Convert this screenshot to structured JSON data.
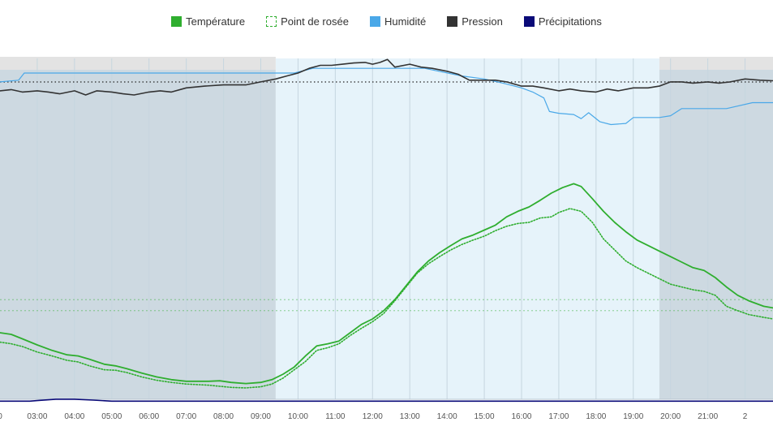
{
  "legend": [
    {
      "label": "Température",
      "color": "#2fae2f",
      "style": "solid"
    },
    {
      "label": "Point de rosée",
      "color": "#2fae2f",
      "style": "dotted"
    },
    {
      "label": "Humidité",
      "color": "#4aa8e8",
      "style": "solid"
    },
    {
      "label": "Pression",
      "color": "#333333",
      "style": "solid"
    },
    {
      "label": "Précipitations",
      "color": "#0a0a78",
      "style": "solid"
    }
  ],
  "colors": {
    "temperature": "#2fae2f",
    "dewpoint": "#2fae2f",
    "humidity": "#4aa8e8",
    "pressure": "#333333",
    "precip": "#0a0a78",
    "night": "#cdd9e1",
    "day": "#e6f3fa",
    "night_shade_top": "#e3e3e3"
  },
  "chart_data": {
    "type": "line",
    "x_unit": "hour",
    "xlim": [
      2.0,
      22.75
    ],
    "x_ticks": [
      {
        "x": 2,
        "label": "0"
      },
      {
        "x": 3,
        "label": "03:00"
      },
      {
        "x": 4,
        "label": "04:00"
      },
      {
        "x": 5,
        "label": "05:00"
      },
      {
        "x": 6,
        "label": "06:00"
      },
      {
        "x": 7,
        "label": "07:00"
      },
      {
        "x": 8,
        "label": "08:00"
      },
      {
        "x": 9,
        "label": "09:00"
      },
      {
        "x": 10,
        "label": "10:00"
      },
      {
        "x": 11,
        "label": "11:00"
      },
      {
        "x": 12,
        "label": "12:00"
      },
      {
        "x": 13,
        "label": "13:00"
      },
      {
        "x": 14,
        "label": "14:00"
      },
      {
        "x": 15,
        "label": "15:00"
      },
      {
        "x": 16,
        "label": "16:00"
      },
      {
        "x": 17,
        "label": "17:00"
      },
      {
        "x": 18,
        "label": "18:00"
      },
      {
        "x": 19,
        "label": "19:00"
      },
      {
        "x": 20,
        "label": "20:00"
      },
      {
        "x": 21,
        "label": "21:00"
      },
      {
        "x": 22,
        "label": "2"
      }
    ],
    "night_bands": [
      [
        2.0,
        9.4
      ],
      [
        19.7,
        22.75
      ]
    ],
    "day_band": [
      9.4,
      19.7
    ],
    "gridlines_hours": [
      3,
      4,
      5,
      6,
      7,
      8,
      9,
      10,
      11,
      12,
      13,
      14,
      15,
      16,
      17,
      18,
      19,
      20,
      21,
      22
    ],
    "temp_scale": [
      0,
      100
    ],
    "pressure_scale": [
      0,
      100
    ],
    "series": [
      {
        "name": "Température",
        "key": "temperature",
        "axis": "temp",
        "points": [
          [
            2.0,
            25.0
          ],
          [
            2.3,
            24.4
          ],
          [
            2.6,
            22.8
          ],
          [
            3.0,
            20.6
          ],
          [
            3.4,
            18.6
          ],
          [
            3.8,
            17.0
          ],
          [
            4.1,
            16.6
          ],
          [
            4.4,
            15.4
          ],
          [
            4.8,
            13.6
          ],
          [
            5.1,
            13.0
          ],
          [
            5.4,
            12.0
          ],
          [
            5.8,
            10.4
          ],
          [
            6.2,
            9.0
          ],
          [
            6.6,
            8.0
          ],
          [
            7.0,
            7.4
          ],
          [
            7.6,
            7.4
          ],
          [
            7.9,
            7.6
          ],
          [
            8.2,
            7.0
          ],
          [
            8.6,
            6.6
          ],
          [
            9.0,
            7.0
          ],
          [
            9.3,
            8.0
          ],
          [
            9.6,
            10.0
          ],
          [
            9.9,
            12.6
          ],
          [
            10.2,
            16.6
          ],
          [
            10.5,
            20.2
          ],
          [
            10.8,
            21.0
          ],
          [
            11.1,
            22.0
          ],
          [
            11.4,
            25.0
          ],
          [
            11.7,
            28.0
          ],
          [
            12.0,
            30.0
          ],
          [
            12.3,
            33.0
          ],
          [
            12.6,
            37.0
          ],
          [
            12.9,
            42.0
          ],
          [
            13.2,
            47.0
          ],
          [
            13.5,
            51.0
          ],
          [
            13.8,
            54.0
          ],
          [
            14.1,
            56.6
          ],
          [
            14.4,
            59.0
          ],
          [
            14.7,
            60.4
          ],
          [
            15.0,
            62.2
          ],
          [
            15.3,
            64.0
          ],
          [
            15.6,
            67.0
          ],
          [
            15.9,
            69.0
          ],
          [
            16.2,
            70.6
          ],
          [
            16.5,
            73.0
          ],
          [
            16.8,
            75.6
          ],
          [
            17.1,
            77.6
          ],
          [
            17.4,
            79.0
          ],
          [
            17.6,
            78.0
          ],
          [
            17.9,
            73.6
          ],
          [
            18.2,
            69.0
          ],
          [
            18.5,
            65.0
          ],
          [
            18.8,
            61.6
          ],
          [
            19.1,
            58.6
          ],
          [
            19.4,
            56.6
          ],
          [
            19.7,
            54.6
          ],
          [
            20.0,
            52.6
          ],
          [
            20.3,
            50.6
          ],
          [
            20.6,
            48.6
          ],
          [
            20.9,
            47.6
          ],
          [
            21.2,
            45.0
          ],
          [
            21.5,
            41.6
          ],
          [
            21.8,
            38.6
          ],
          [
            22.1,
            36.6
          ],
          [
            22.5,
            34.6
          ],
          [
            22.75,
            34.0
          ]
        ]
      },
      {
        "name": "Point de rosée",
        "key": "dewpoint",
        "axis": "temp",
        "points": [
          [
            2.0,
            21.6
          ],
          [
            2.3,
            21.0
          ],
          [
            2.6,
            20.0
          ],
          [
            3.0,
            18.0
          ],
          [
            3.4,
            16.6
          ],
          [
            3.8,
            15.0
          ],
          [
            4.1,
            14.4
          ],
          [
            4.4,
            13.0
          ],
          [
            4.8,
            11.6
          ],
          [
            5.1,
            11.4
          ],
          [
            5.4,
            10.6
          ],
          [
            5.8,
            9.0
          ],
          [
            6.2,
            7.8
          ],
          [
            6.6,
            7.0
          ],
          [
            7.0,
            6.4
          ],
          [
            7.6,
            6.0
          ],
          [
            7.9,
            5.6
          ],
          [
            8.2,
            5.2
          ],
          [
            8.6,
            5.0
          ],
          [
            9.0,
            5.4
          ],
          [
            9.3,
            6.4
          ],
          [
            9.6,
            8.6
          ],
          [
            9.9,
            11.6
          ],
          [
            10.2,
            14.6
          ],
          [
            10.5,
            18.6
          ],
          [
            10.8,
            19.6
          ],
          [
            11.1,
            21.0
          ],
          [
            11.4,
            24.0
          ],
          [
            11.7,
            26.6
          ],
          [
            12.0,
            29.0
          ],
          [
            12.3,
            32.0
          ],
          [
            12.6,
            36.6
          ],
          [
            12.9,
            41.6
          ],
          [
            13.2,
            46.6
          ],
          [
            13.5,
            50.0
          ],
          [
            13.8,
            52.6
          ],
          [
            14.1,
            55.0
          ],
          [
            14.4,
            57.0
          ],
          [
            14.7,
            58.6
          ],
          [
            15.0,
            60.0
          ],
          [
            15.3,
            62.0
          ],
          [
            15.6,
            63.6
          ],
          [
            15.9,
            64.6
          ],
          [
            16.2,
            65.0
          ],
          [
            16.5,
            66.6
          ],
          [
            16.8,
            67.0
          ],
          [
            17.0,
            68.6
          ],
          [
            17.3,
            70.0
          ],
          [
            17.6,
            69.0
          ],
          [
            17.9,
            65.0
          ],
          [
            18.2,
            59.0
          ],
          [
            18.5,
            55.0
          ],
          [
            18.8,
            51.0
          ],
          [
            19.1,
            48.6
          ],
          [
            19.4,
            46.6
          ],
          [
            19.7,
            44.6
          ],
          [
            20.0,
            42.6
          ],
          [
            20.3,
            41.6
          ],
          [
            20.6,
            40.6
          ],
          [
            20.9,
            40.0
          ],
          [
            21.2,
            38.6
          ],
          [
            21.5,
            34.6
          ],
          [
            21.8,
            33.0
          ],
          [
            22.1,
            31.6
          ],
          [
            22.5,
            30.6
          ],
          [
            22.75,
            30.0
          ]
        ]
      },
      {
        "name": "Humidité",
        "key": "humidity",
        "axis": "pressure",
        "points": [
          [
            2.0,
            97.0
          ],
          [
            2.5,
            97.6
          ],
          [
            2.65,
            100.0
          ],
          [
            9.4,
            100.0
          ],
          [
            9.9,
            100.0
          ],
          [
            10.4,
            101.6
          ],
          [
            13.4,
            101.6
          ],
          [
            14.4,
            99.0
          ],
          [
            15.0,
            98.0
          ],
          [
            15.5,
            96.6
          ],
          [
            16.0,
            95.0
          ],
          [
            16.3,
            93.6
          ],
          [
            16.6,
            91.6
          ],
          [
            16.75,
            87.0
          ],
          [
            17.0,
            86.4
          ],
          [
            17.4,
            86.0
          ],
          [
            17.6,
            84.6
          ],
          [
            17.8,
            86.6
          ],
          [
            18.1,
            83.6
          ],
          [
            18.4,
            82.6
          ],
          [
            18.8,
            83.0
          ],
          [
            19.0,
            85.0
          ],
          [
            19.7,
            85.0
          ],
          [
            20.0,
            85.6
          ],
          [
            20.3,
            88.0
          ],
          [
            21.0,
            88.0
          ],
          [
            21.5,
            88.0
          ],
          [
            22.2,
            90.0
          ],
          [
            22.75,
            90.0
          ]
        ]
      },
      {
        "name": "Pression",
        "key": "pressure",
        "axis": "pressure",
        "points": [
          [
            2.0,
            94.0
          ],
          [
            2.3,
            94.4
          ],
          [
            2.6,
            93.6
          ],
          [
            3.0,
            94.0
          ],
          [
            3.3,
            93.6
          ],
          [
            3.6,
            93.0
          ],
          [
            4.0,
            94.0
          ],
          [
            4.3,
            92.6
          ],
          [
            4.6,
            94.0
          ],
          [
            5.0,
            93.6
          ],
          [
            5.3,
            93.0
          ],
          [
            5.6,
            92.6
          ],
          [
            6.0,
            93.6
          ],
          [
            6.3,
            94.0
          ],
          [
            6.6,
            93.6
          ],
          [
            7.0,
            95.0
          ],
          [
            7.5,
            95.6
          ],
          [
            8.0,
            96.0
          ],
          [
            8.6,
            96.0
          ],
          [
            9.0,
            97.0
          ],
          [
            9.4,
            98.0
          ],
          [
            9.7,
            99.0
          ],
          [
            10.0,
            100.0
          ],
          [
            10.3,
            101.6
          ],
          [
            10.6,
            102.6
          ],
          [
            10.9,
            102.6
          ],
          [
            11.2,
            103.0
          ],
          [
            11.5,
            103.4
          ],
          [
            11.8,
            103.6
          ],
          [
            12.0,
            103.0
          ],
          [
            12.2,
            103.6
          ],
          [
            12.4,
            104.6
          ],
          [
            12.6,
            102.0
          ],
          [
            13.0,
            103.0
          ],
          [
            13.3,
            102.0
          ],
          [
            13.6,
            101.6
          ],
          [
            14.0,
            100.6
          ],
          [
            14.3,
            99.6
          ],
          [
            14.6,
            97.6
          ],
          [
            15.0,
            97.6
          ],
          [
            15.3,
            97.6
          ],
          [
            15.6,
            97.0
          ],
          [
            16.0,
            95.6
          ],
          [
            16.3,
            95.6
          ],
          [
            16.6,
            95.0
          ],
          [
            17.0,
            94.0
          ],
          [
            17.3,
            94.6
          ],
          [
            17.6,
            94.0
          ],
          [
            18.0,
            93.6
          ],
          [
            18.3,
            94.6
          ],
          [
            18.6,
            94.0
          ],
          [
            19.0,
            95.0
          ],
          [
            19.4,
            95.0
          ],
          [
            19.7,
            95.6
          ],
          [
            20.0,
            97.0
          ],
          [
            20.3,
            97.0
          ],
          [
            20.6,
            96.6
          ],
          [
            21.0,
            97.0
          ],
          [
            21.3,
            96.6
          ],
          [
            21.6,
            97.0
          ],
          [
            22.0,
            98.0
          ],
          [
            22.4,
            97.6
          ],
          [
            22.75,
            97.4
          ]
        ]
      },
      {
        "name": "Précipitations",
        "key": "precip",
        "axis": "temp",
        "points": [
          [
            2.0,
            0.2
          ],
          [
            2.8,
            0.2
          ],
          [
            3.0,
            0.4
          ],
          [
            3.5,
            0.9
          ],
          [
            4.0,
            0.9
          ],
          [
            4.5,
            0.6
          ],
          [
            5.0,
            0.2
          ],
          [
            22.75,
            0.2
          ]
        ]
      }
    ],
    "reference_lines": [
      {
        "axis": "pressure",
        "value": 97.0,
        "color": "#333333",
        "style": "dotted"
      },
      {
        "axis": "temp",
        "value": 37.0,
        "color": "#2fae2f",
        "style": "dashed"
      },
      {
        "axis": "temp",
        "value": 33.0,
        "color": "#2fae2f",
        "style": "dashed"
      }
    ]
  }
}
